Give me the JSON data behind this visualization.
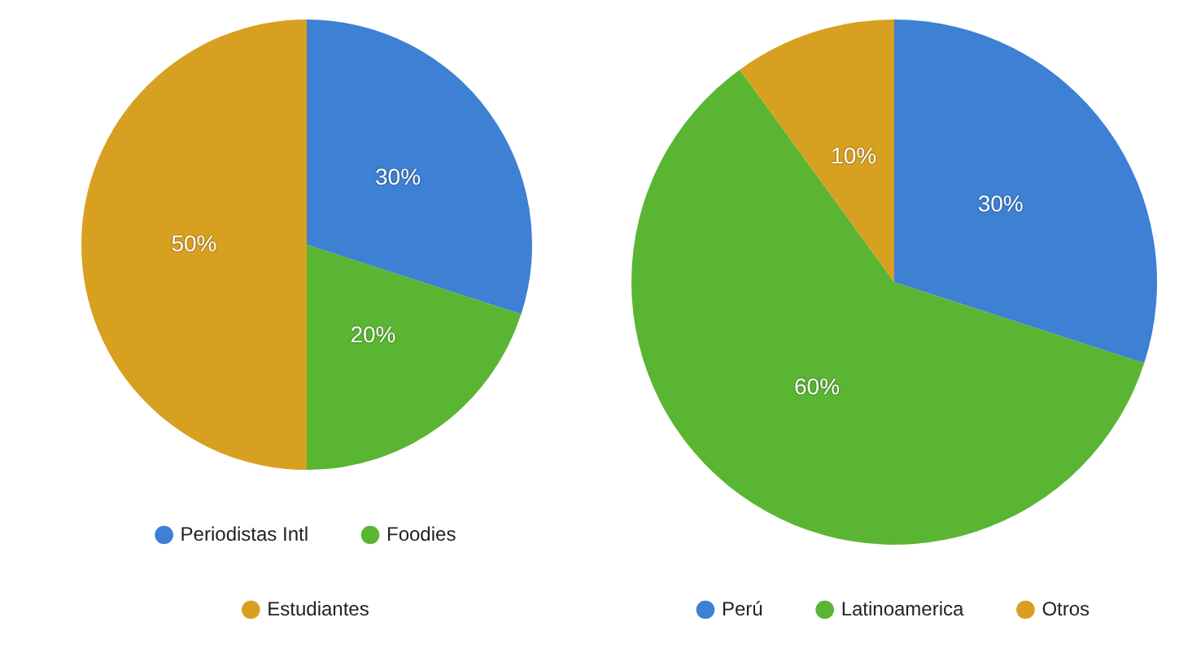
{
  "chart_data": [
    {
      "type": "pie",
      "categories": [
        "Periodistas Intl",
        "Foodies",
        "Estudiantes"
      ],
      "values": [
        30,
        20,
        50
      ],
      "colors": [
        "#3d80d4",
        "#5ab532",
        "#d8a020"
      ],
      "value_labels": [
        "30%",
        "20%",
        "50%"
      ],
      "legend": "bottom"
    },
    {
      "type": "pie",
      "categories": [
        "Perú",
        "Latinoamerica",
        "Otros"
      ],
      "values": [
        30,
        60,
        10
      ],
      "colors": [
        "#3d80d4",
        "#5ab532",
        "#d8a020"
      ],
      "value_labels": [
        "30%",
        "60%",
        "10%"
      ],
      "legend": "bottom"
    }
  ]
}
